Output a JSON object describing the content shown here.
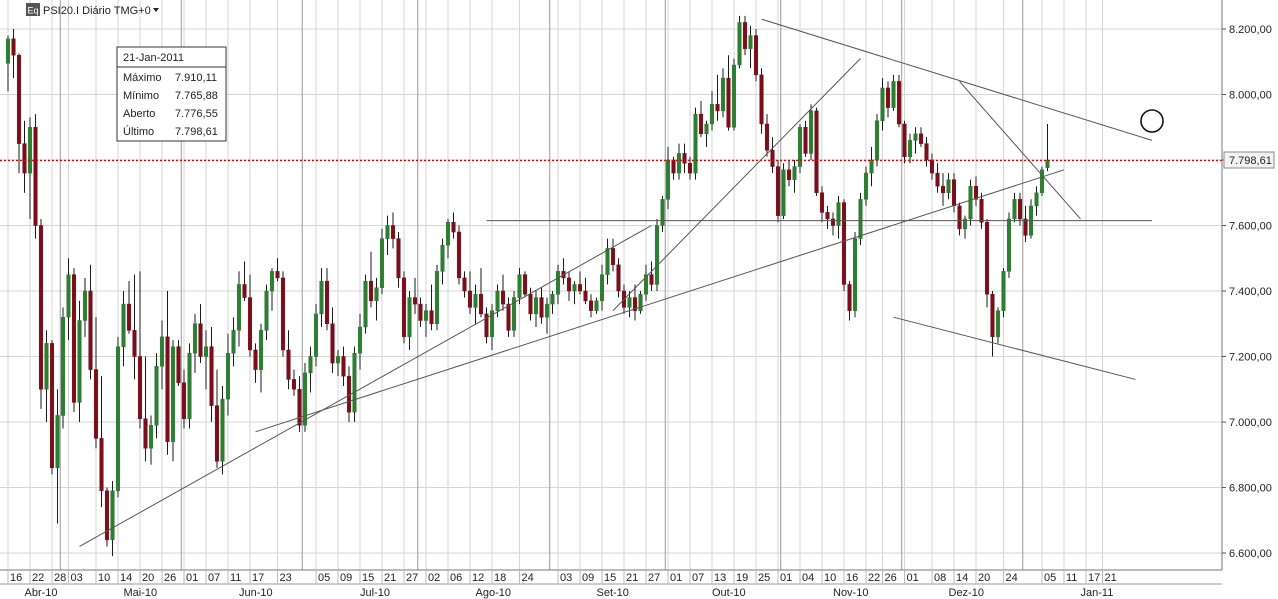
{
  "header": {
    "icon_text": "Eq",
    "title": "PSI20.I Diário TMG+0",
    "dropdown_icon": "triangle-down"
  },
  "info_box": {
    "date": "21-Jan-2011",
    "rows": [
      {
        "label": "Máximo",
        "value": "7.910,11"
      },
      {
        "label": "Mínimo",
        "value": "7.765,88"
      },
      {
        "label": "Aberto",
        "value": "7.776,55"
      },
      {
        "label": "Último",
        "value": "7.798,61"
      }
    ]
  },
  "last_price_label": "7.798,61",
  "colors": {
    "up": "#2e7d32",
    "down": "#7a0f1c",
    "last_price_line": "#e00000",
    "grid": "#d6d6d6",
    "trendline": "#555555"
  },
  "chart_data": {
    "type": "candlestick",
    "series_name": "PSI20.I",
    "interval": "daily",
    "ylim": [
      6530,
      8300
    ],
    "y_ticks": [
      "8.200,00",
      "8.000,00",
      "7.800,00",
      "7.600,00",
      "7.400,00",
      "7.200,00",
      "7.000,00",
      "6.800,00",
      "6.600,00"
    ],
    "y_tick_values": [
      8200,
      8000,
      7800,
      7600,
      7400,
      7200,
      7000,
      6800,
      6600
    ],
    "x_ticks": [
      {
        "label": "16",
        "i": 0
      },
      {
        "label": "22",
        "i": 4
      },
      {
        "label": "28",
        "i": 8
      },
      {
        "label": "03",
        "i": 11
      },
      {
        "label": "10",
        "i": 16
      },
      {
        "label": "14",
        "i": 20
      },
      {
        "label": "20",
        "i": 24
      },
      {
        "label": "26",
        "i": 28
      },
      {
        "label": "01",
        "i": 32
      },
      {
        "label": "07",
        "i": 36
      },
      {
        "label": "11",
        "i": 40
      },
      {
        "label": "17",
        "i": 44
      },
      {
        "label": "23",
        "i": 49
      },
      {
        "label": "05",
        "i": 56
      },
      {
        "label": "09",
        "i": 60
      },
      {
        "label": "15",
        "i": 64
      },
      {
        "label": "21",
        "i": 68
      },
      {
        "label": "27",
        "i": 72
      },
      {
        "label": "02",
        "i": 76
      },
      {
        "label": "06",
        "i": 80
      },
      {
        "label": "12",
        "i": 84
      },
      {
        "label": "18",
        "i": 88
      },
      {
        "label": "24",
        "i": 93
      },
      {
        "label": "03",
        "i": 100
      },
      {
        "label": "09",
        "i": 104
      },
      {
        "label": "15",
        "i": 108
      },
      {
        "label": "21",
        "i": 112
      },
      {
        "label": "27",
        "i": 116
      },
      {
        "label": "01",
        "i": 120
      },
      {
        "label": "07",
        "i": 124
      },
      {
        "label": "13",
        "i": 128
      },
      {
        "label": "19",
        "i": 132
      },
      {
        "label": "25",
        "i": 136
      },
      {
        "label": "01",
        "i": 140
      },
      {
        "label": "04",
        "i": 144
      },
      {
        "label": "10",
        "i": 148
      },
      {
        "label": "16",
        "i": 152
      },
      {
        "label": "22",
        "i": 156
      },
      {
        "label": "26",
        "i": 159
      },
      {
        "label": "01",
        "i": 163
      },
      {
        "label": "08",
        "i": 168
      },
      {
        "label": "14",
        "i": 172
      },
      {
        "label": "20",
        "i": 176
      },
      {
        "label": "24",
        "i": 181
      },
      {
        "label": "05",
        "i": 188
      },
      {
        "label": "11",
        "i": 192
      },
      {
        "label": "17",
        "i": 196
      },
      {
        "label": "21",
        "i": 199
      }
    ],
    "months": [
      {
        "label": "Abr-10",
        "i": 3
      },
      {
        "label": "Mai-10",
        "i": 21
      },
      {
        "label": "Jun-10",
        "i": 42
      },
      {
        "label": "Jul-10",
        "i": 64
      },
      {
        "label": "Ago-10",
        "i": 85
      },
      {
        "label": "Set-10",
        "i": 107
      },
      {
        "label": "Out-10",
        "i": 128
      },
      {
        "label": "Nov-10",
        "i": 150
      },
      {
        "label": "Dez-10",
        "i": 171
      },
      {
        "label": "Jan-11",
        "i": 195
      }
    ],
    "month_separators_i": [
      9.5,
      31.5,
      53.5,
      74.5,
      98.5,
      119.5,
      140.5,
      162.5,
      184.5
    ],
    "last_price": 7798.61,
    "ohlc": [
      [
        8095,
        8180,
        8010,
        8170
      ],
      [
        8170,
        8200,
        8050,
        8120
      ],
      [
        8120,
        8125,
        7760,
        7850
      ],
      [
        7850,
        7920,
        7700,
        7760
      ],
      [
        7760,
        7930,
        7620,
        7900
      ],
      [
        7900,
        7940,
        7560,
        7600
      ],
      [
        7600,
        7620,
        7040,
        7100
      ],
      [
        7100,
        7280,
        7000,
        7240
      ],
      [
        7240,
        7250,
        6840,
        6860
      ],
      [
        6860,
        7100,
        6690,
        7020
      ],
      [
        7020,
        7350,
        6980,
        7320
      ],
      [
        7320,
        7500,
        7250,
        7450
      ],
      [
        7450,
        7470,
        7030,
        7060
      ],
      [
        7060,
        7370,
        7000,
        7310
      ],
      [
        7310,
        7440,
        7260,
        7400
      ],
      [
        7400,
        7480,
        7130,
        7160
      ],
      [
        7160,
        7320,
        6920,
        6950
      ],
      [
        6950,
        7140,
        6740,
        6790
      ],
      [
        6790,
        6800,
        6620,
        6640
      ],
      [
        6640,
        6820,
        6590,
        6790
      ],
      [
        6790,
        7260,
        6770,
        7230
      ],
      [
        7230,
        7400,
        7170,
        7360
      ],
      [
        7360,
        7430,
        7270,
        7280
      ],
      [
        7280,
        7450,
        7130,
        7200
      ],
      [
        7200,
        7460,
        6980,
        7010
      ],
      [
        7010,
        7200,
        6880,
        6920
      ],
      [
        6920,
        7020,
        6870,
        6990
      ],
      [
        6990,
        7210,
        6950,
        7170
      ],
      [
        7170,
        7310,
        7100,
        7260
      ],
      [
        7260,
        7400,
        6900,
        6940
      ],
      [
        6940,
        7250,
        6880,
        7230
      ],
      [
        7230,
        7250,
        7110,
        7120
      ],
      [
        7120,
        7160,
        6980,
        7010
      ],
      [
        7010,
        7240,
        6980,
        7210
      ],
      [
        7210,
        7330,
        7150,
        7300
      ],
      [
        7300,
        7360,
        7180,
        7200
      ],
      [
        7200,
        7280,
        7100,
        7230
      ],
      [
        7230,
        7290,
        7000,
        7050
      ],
      [
        7050,
        7160,
        6860,
        6880
      ],
      [
        6880,
        7110,
        6840,
        7070
      ],
      [
        7070,
        7270,
        7020,
        7210
      ],
      [
        7210,
        7320,
        7170,
        7280
      ],
      [
        7280,
        7460,
        7230,
        7420
      ],
      [
        7420,
        7490,
        7370,
        7380
      ],
      [
        7380,
        7450,
        7200,
        7220
      ],
      [
        7220,
        7240,
        7120,
        7160
      ],
      [
        7160,
        7300,
        7090,
        7280
      ],
      [
        7280,
        7420,
        7250,
        7400
      ],
      [
        7400,
        7470,
        7340,
        7460
      ],
      [
        7460,
        7500,
        7430,
        7440
      ],
      [
        7440,
        7460,
        7200,
        7220
      ],
      [
        7220,
        7280,
        7100,
        7130
      ],
      [
        7130,
        7160,
        7080,
        7100
      ],
      [
        7100,
        7140,
        6970,
        6990
      ],
      [
        6990,
        7180,
        6970,
        7150
      ],
      [
        7150,
        7230,
        7090,
        7200
      ],
      [
        7200,
        7360,
        7170,
        7330
      ],
      [
        7330,
        7470,
        7290,
        7430
      ],
      [
        7430,
        7470,
        7280,
        7300
      ],
      [
        7300,
        7350,
        7150,
        7180
      ],
      [
        7180,
        7220,
        7140,
        7200
      ],
      [
        7200,
        7230,
        7110,
        7140
      ],
      [
        7140,
        7170,
        7000,
        7030
      ],
      [
        7030,
        7230,
        7000,
        7210
      ],
      [
        7210,
        7330,
        7160,
        7290
      ],
      [
        7290,
        7450,
        7270,
        7430
      ],
      [
        7430,
        7520,
        7350,
        7370
      ],
      [
        7370,
        7440,
        7310,
        7410
      ],
      [
        7410,
        7590,
        7390,
        7560
      ],
      [
        7560,
        7630,
        7510,
        7600
      ],
      [
        7600,
        7640,
        7530,
        7560
      ],
      [
        7560,
        7580,
        7410,
        7440
      ],
      [
        7440,
        7460,
        7240,
        7260
      ],
      [
        7260,
        7400,
        7220,
        7380
      ],
      [
        7380,
        7440,
        7330,
        7360
      ],
      [
        7360,
        7380,
        7290,
        7310
      ],
      [
        7310,
        7360,
        7260,
        7340
      ],
      [
        7340,
        7420,
        7280,
        7300
      ],
      [
        7300,
        7480,
        7280,
        7460
      ],
      [
        7460,
        7560,
        7420,
        7540
      ],
      [
        7540,
        7620,
        7500,
        7610
      ],
      [
        7610,
        7640,
        7560,
        7580
      ],
      [
        7580,
        7600,
        7420,
        7440
      ],
      [
        7440,
        7460,
        7380,
        7400
      ],
      [
        7400,
        7460,
        7330,
        7350
      ],
      [
        7350,
        7420,
        7300,
        7390
      ],
      [
        7390,
        7470,
        7320,
        7330
      ],
      [
        7330,
        7350,
        7240,
        7260
      ],
      [
        7260,
        7360,
        7220,
        7340
      ],
      [
        7340,
        7420,
        7320,
        7400
      ],
      [
        7400,
        7450,
        7340,
        7360
      ],
      [
        7360,
        7380,
        7260,
        7280
      ],
      [
        7280,
        7400,
        7260,
        7380
      ],
      [
        7380,
        7470,
        7360,
        7450
      ],
      [
        7450,
        7460,
        7380,
        7390
      ],
      [
        7390,
        7410,
        7310,
        7330
      ],
      [
        7330,
        7400,
        7290,
        7380
      ],
      [
        7380,
        7410,
        7300,
        7320
      ],
      [
        7320,
        7380,
        7270,
        7360
      ],
      [
        7360,
        7400,
        7330,
        7390
      ],
      [
        7390,
        7480,
        7360,
        7460
      ],
      [
        7460,
        7500,
        7420,
        7440
      ],
      [
        7440,
        7460,
        7370,
        7400
      ],
      [
        7400,
        7430,
        7360,
        7420
      ],
      [
        7420,
        7460,
        7390,
        7400
      ],
      [
        7400,
        7440,
        7360,
        7370
      ],
      [
        7370,
        7390,
        7320,
        7340
      ],
      [
        7340,
        7380,
        7330,
        7370
      ],
      [
        7370,
        7480,
        7340,
        7450
      ],
      [
        7450,
        7560,
        7420,
        7530
      ],
      [
        7530,
        7560,
        7460,
        7480
      ],
      [
        7480,
        7500,
        7380,
        7400
      ],
      [
        7400,
        7420,
        7330,
        7350
      ],
      [
        7350,
        7400,
        7320,
        7380
      ],
      [
        7380,
        7420,
        7310,
        7340
      ],
      [
        7340,
        7400,
        7330,
        7390
      ],
      [
        7390,
        7480,
        7370,
        7450
      ],
      [
        7450,
        7490,
        7400,
        7420
      ],
      [
        7420,
        7620,
        7400,
        7600
      ],
      [
        7600,
        7690,
        7580,
        7680
      ],
      [
        7680,
        7840,
        7650,
        7800
      ],
      [
        7800,
        7810,
        7740,
        7760
      ],
      [
        7760,
        7850,
        7740,
        7820
      ],
      [
        7820,
        7850,
        7760,
        7790
      ],
      [
        7790,
        7810,
        7740,
        7760
      ],
      [
        7760,
        7960,
        7740,
        7940
      ],
      [
        7940,
        7980,
        7870,
        7880
      ],
      [
        7880,
        7920,
        7840,
        7910
      ],
      [
        7910,
        8010,
        7890,
        7970
      ],
      [
        7970,
        8060,
        7920,
        7950
      ],
      [
        7950,
        8080,
        7930,
        8050
      ],
      [
        8050,
        8120,
        7890,
        7900
      ],
      [
        7900,
        8110,
        7890,
        8090
      ],
      [
        8090,
        8240,
        8080,
        8220
      ],
      [
        8220,
        8240,
        8120,
        8140
      ],
      [
        8140,
        8210,
        8080,
        8180
      ],
      [
        8180,
        8200,
        8040,
        8060
      ],
      [
        8060,
        8080,
        7880,
        7910
      ],
      [
        7910,
        7940,
        7810,
        7830
      ],
      [
        7830,
        7870,
        7760,
        7780
      ],
      [
        7780,
        7800,
        7610,
        7630
      ],
      [
        7630,
        7790,
        7620,
        7770
      ],
      [
        7770,
        7800,
        7720,
        7740
      ],
      [
        7740,
        7800,
        7700,
        7780
      ],
      [
        7780,
        7910,
        7760,
        7900
      ],
      [
        7900,
        7920,
        7810,
        7820
      ],
      [
        7820,
        7970,
        7800,
        7950
      ],
      [
        7950,
        7960,
        7690,
        7700
      ],
      [
        7700,
        7720,
        7610,
        7640
      ],
      [
        7640,
        7660,
        7590,
        7620
      ],
      [
        7620,
        7640,
        7570,
        7600
      ],
      [
        7600,
        7690,
        7560,
        7670
      ],
      [
        7670,
        7680,
        7400,
        7420
      ],
      [
        7420,
        7430,
        7310,
        7340
      ],
      [
        7340,
        7580,
        7320,
        7560
      ],
      [
        7560,
        7700,
        7540,
        7680
      ],
      [
        7680,
        7780,
        7660,
        7760
      ],
      [
        7760,
        7840,
        7720,
        7800
      ],
      [
        7800,
        7940,
        7780,
        7920
      ],
      [
        7920,
        8050,
        7890,
        8020
      ],
      [
        8020,
        8040,
        7930,
        7960
      ],
      [
        7960,
        8060,
        7950,
        8040
      ],
      [
        8040,
        8060,
        7900,
        7910
      ],
      [
        7910,
        7920,
        7790,
        7810
      ],
      [
        7810,
        7880,
        7790,
        7860
      ],
      [
        7860,
        7900,
        7820,
        7880
      ],
      [
        7880,
        7900,
        7840,
        7850
      ],
      [
        7850,
        7870,
        7780,
        7800
      ],
      [
        7800,
        7820,
        7740,
        7760
      ],
      [
        7760,
        7790,
        7700,
        7720
      ],
      [
        7720,
        7760,
        7660,
        7700
      ],
      [
        7700,
        7760,
        7680,
        7740
      ],
      [
        7740,
        7760,
        7640,
        7660
      ],
      [
        7660,
        7670,
        7570,
        7590
      ],
      [
        7590,
        7630,
        7560,
        7620
      ],
      [
        7620,
        7740,
        7600,
        7720
      ],
      [
        7720,
        7750,
        7660,
        7680
      ],
      [
        7680,
        7700,
        7590,
        7610
      ],
      [
        7610,
        7620,
        7350,
        7390
      ],
      [
        7390,
        7400,
        7200,
        7260
      ],
      [
        7260,
        7350,
        7240,
        7340
      ],
      [
        7340,
        7470,
        7320,
        7460
      ],
      [
        7460,
        7640,
        7440,
        7620
      ],
      [
        7620,
        7700,
        7610,
        7680
      ],
      [
        7680,
        7700,
        7600,
        7620
      ],
      [
        7620,
        7660,
        7550,
        7570
      ],
      [
        7570,
        7680,
        7560,
        7660
      ],
      [
        7660,
        7720,
        7630,
        7700
      ],
      [
        7700,
        7780,
        7690,
        7770
      ],
      [
        7776.55,
        7910.11,
        7765.88,
        7798.61
      ]
    ],
    "trendlines": [
      {
        "name": "support-may-jul",
        "i1": 13,
        "p1": 6620,
        "i2": 117,
        "p2": 7600
      },
      {
        "name": "support-jul-dec",
        "i1": 45,
        "p1": 6970,
        "i2": 192,
        "p2": 7770
      },
      {
        "name": "resistance-top",
        "i1": 137,
        "p1": 8230,
        "i2": 208,
        "p2": 7860
      },
      {
        "name": "resistance-dec",
        "i1": 173,
        "p1": 8040,
        "i2": 195,
        "p2": 7620
      },
      {
        "name": "horizontal-7620",
        "i1": 87,
        "p1": 7615,
        "i2": 208,
        "p2": 7615
      },
      {
        "name": "rally-sep-oct",
        "i1": 110,
        "p1": 7340,
        "i2": 155,
        "p2": 8110
      },
      {
        "name": "channel-bottom",
        "i1": 161,
        "p1": 7320,
        "i2": 205,
        "p2": 7130
      }
    ]
  }
}
